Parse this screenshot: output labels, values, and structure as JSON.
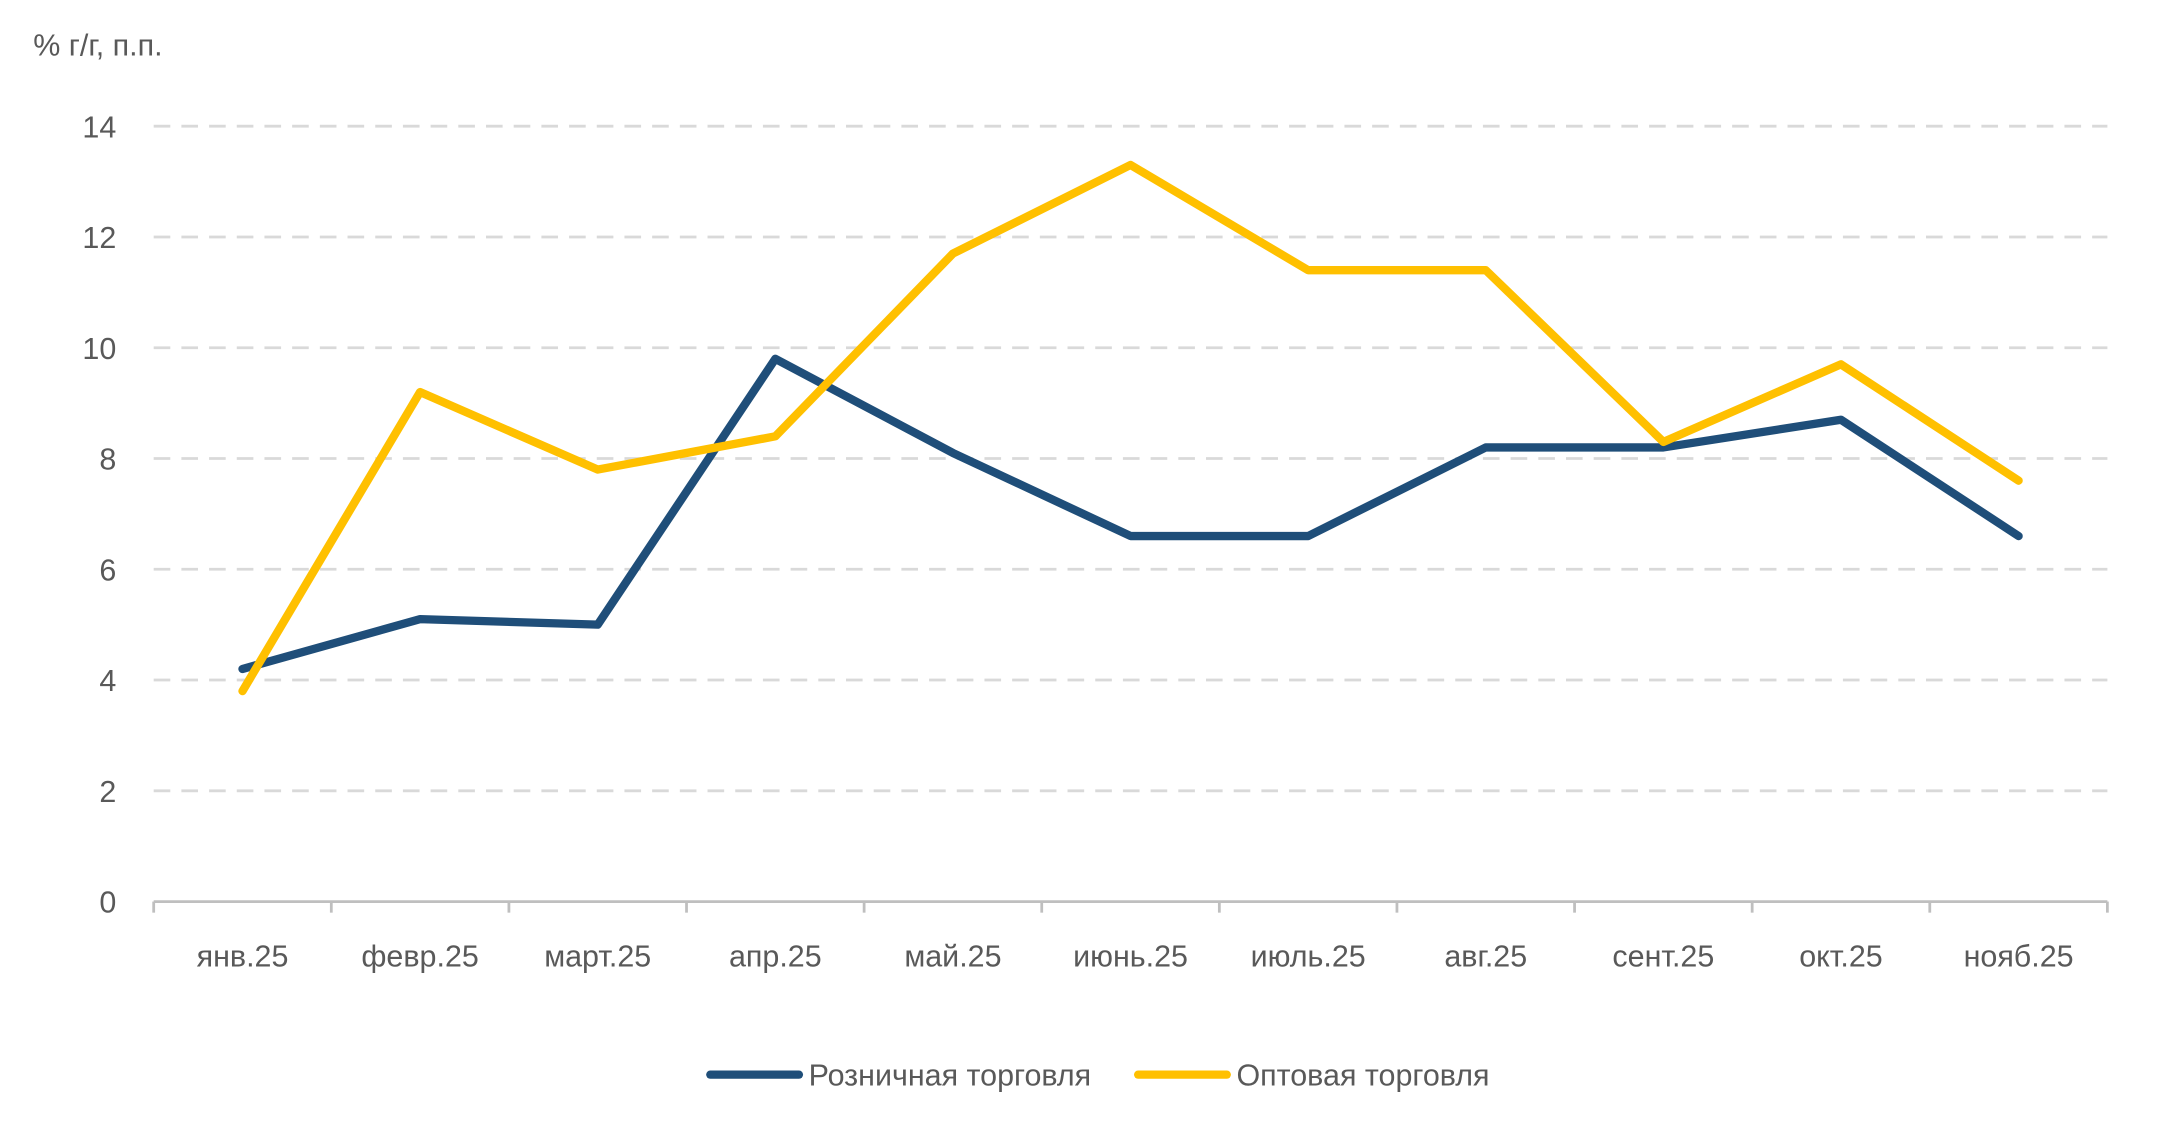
{
  "chart_data": {
    "type": "line",
    "title": "",
    "ylabel": "% г/г, п.п.",
    "xlabel": "",
    "ylim": [
      0,
      14
    ],
    "yticks": [
      0,
      2,
      4,
      6,
      8,
      10,
      12,
      14
    ],
    "grid": true,
    "legend_position": "bottom",
    "categories": [
      "янв.25",
      "февр.25",
      "март.25",
      "апр.25",
      "май.25",
      "июнь.25",
      "июль.25",
      "авг.25",
      "сент.25",
      "окт.25",
      "нояб.25"
    ],
    "series": [
      {
        "name": "Розничная торговля",
        "color": "#1F4E79",
        "values": [
          4.2,
          5.1,
          5.0,
          9.8,
          8.1,
          6.6,
          6.6,
          8.2,
          8.2,
          8.7,
          6.6
        ]
      },
      {
        "name": "Оптовая торговля",
        "color": "#FFC000",
        "values": [
          3.8,
          9.2,
          7.8,
          8.4,
          11.7,
          13.3,
          11.4,
          11.4,
          8.3,
          9.7,
          7.6
        ]
      }
    ]
  }
}
